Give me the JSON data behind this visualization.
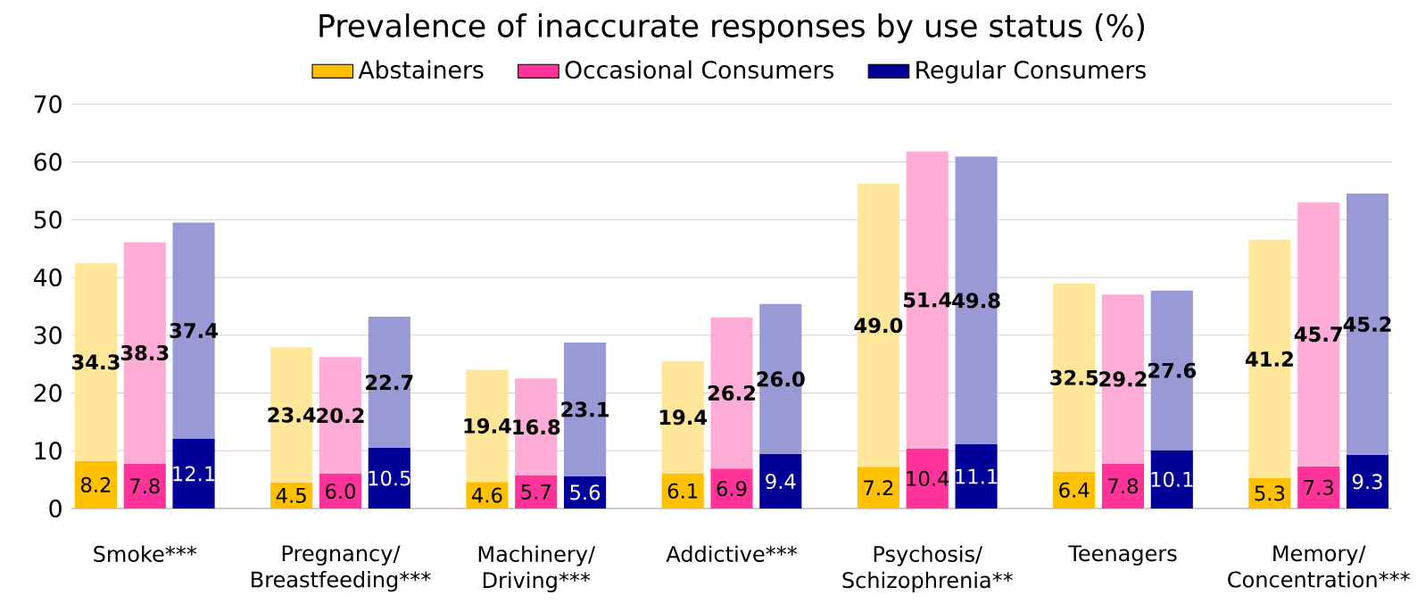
{
  "chart_data": {
    "type": "bar",
    "title": "Prevalence of inaccurate responses by use status (%)",
    "categories": [
      null,
      "Smoke***",
      null,
      null,
      null,
      "Pregnancy/ Breastfeeding***",
      null,
      null,
      null,
      "Machinery/ Driving***",
      null,
      null,
      null,
      "Addictive***",
      null,
      null,
      null,
      "Psychosis/ Schizophrenia**",
      null,
      null,
      null,
      "Teenagers",
      null,
      null,
      null,
      "Memory/ Concentration***",
      null
    ],
    "series": [
      {
        "name": "Abstainers",
        "color": "#ffc000",
        "values": [
          8.2,
          null,
          null,
          null,
          4.5,
          null,
          null,
          null,
          4.6,
          null,
          null,
          null,
          6.1,
          null,
          null,
          null,
          7.2,
          null,
          null,
          null,
          6.4,
          null,
          null,
          null,
          5.3,
          null,
          null
        ],
        "value_labels": [
          "8.2",
          null,
          null,
          null,
          "4.5",
          null,
          null,
          null,
          "4.6",
          null,
          null,
          null,
          "6.1",
          null,
          null,
          null,
          "7.2",
          null,
          null,
          null,
          "6.4",
          null,
          null,
          null,
          "5.3",
          null,
          null
        ]
      },
      {
        "name": "Occasional Consumers",
        "color": "#ff3399",
        "values": [
          null,
          7.8,
          null,
          null,
          null,
          6.0,
          null,
          null,
          null,
          5.7,
          null,
          null,
          null,
          6.9,
          null,
          null,
          null,
          10.4,
          null,
          null,
          null,
          7.8,
          null,
          null,
          null,
          7.3,
          null
        ],
        "value_labels": [
          null,
          "7.8",
          null,
          null,
          null,
          "6.0",
          null,
          null,
          null,
          "5.7",
          null,
          null,
          null,
          "6.9",
          null,
          null,
          null,
          "10.4",
          null,
          null,
          null,
          "7.8",
          null,
          null,
          null,
          "7.3",
          null
        ]
      },
      {
        "name": "Regular Consumers",
        "color": "#000099",
        "values": [
          null,
          null,
          12.1,
          null,
          null,
          null,
          10.5,
          null,
          null,
          null,
          5.6,
          null,
          null,
          null,
          9.4,
          null,
          null,
          null,
          11.1,
          null,
          null,
          null,
          10.1,
          null,
          null,
          null,
          9.3
        ],
        "value_labels": [
          null,
          null,
          "12.1",
          null,
          null,
          null,
          "10.5",
          null,
          null,
          null,
          "5.6",
          null,
          null,
          null,
          "9.4",
          null,
          null,
          null,
          "11.1",
          null,
          null,
          null,
          "10.1",
          null,
          null,
          null,
          "9.3"
        ]
      },
      {
        "color": "#ffe699",
        "values": [
          34.3,
          null,
          null,
          null,
          23.4,
          null,
          null,
          null,
          19.4,
          null,
          null,
          null,
          19.4,
          null,
          null,
          null,
          49.0,
          null,
          null,
          null,
          32.5,
          null,
          null,
          null,
          41.2,
          null,
          null
        ],
        "value_labels": [
          "34.3",
          null,
          null,
          null,
          "23.4",
          null,
          null,
          null,
          "19.4",
          null,
          null,
          null,
          "19.4",
          null,
          null,
          null,
          "49.0",
          null,
          null,
          null,
          "32.5",
          null,
          null,
          null,
          "41.2",
          null,
          null
        ]
      },
      {
        "color": "#ffadd6",
        "values": [
          null,
          38.3,
          null,
          null,
          null,
          20.2,
          null,
          null,
          null,
          16.8,
          null,
          null,
          null,
          26.2,
          null,
          null,
          null,
          51.4,
          null,
          null,
          null,
          29.2,
          null,
          null,
          null,
          45.7,
          null
        ],
        "value_labels": [
          null,
          "38.3",
          null,
          null,
          null,
          "20.2",
          null,
          null,
          null,
          "16.8",
          null,
          null,
          null,
          "26.2",
          null,
          null,
          null,
          "51.4",
          null,
          null,
          null,
          "29.2",
          null,
          null,
          null,
          "45.7",
          null
        ]
      },
      {
        "color": "#9999d6",
        "values": [
          null,
          null,
          37.4,
          null,
          null,
          null,
          22.7,
          null,
          null,
          null,
          23.1,
          null,
          null,
          null,
          26.0,
          null,
          null,
          null,
          49.8,
          null,
          null,
          null,
          27.6,
          null,
          null,
          null,
          45.2
        ],
        "value_labels": [
          null,
          null,
          "37.4",
          null,
          null,
          null,
          "22.7",
          null,
          null,
          null,
          "23.1",
          null,
          null,
          null,
          "26.0",
          null,
          null,
          null,
          "49.8",
          null,
          null,
          null,
          "27.6",
          null,
          null,
          null,
          "45.2"
        ]
      }
    ],
    "ylim": [
      0,
      70
    ],
    "yticks": [
      0,
      10,
      20,
      30,
      40,
      50,
      60,
      70
    ],
    "grid": "y",
    "legend": "top",
    "stacked": true
  }
}
